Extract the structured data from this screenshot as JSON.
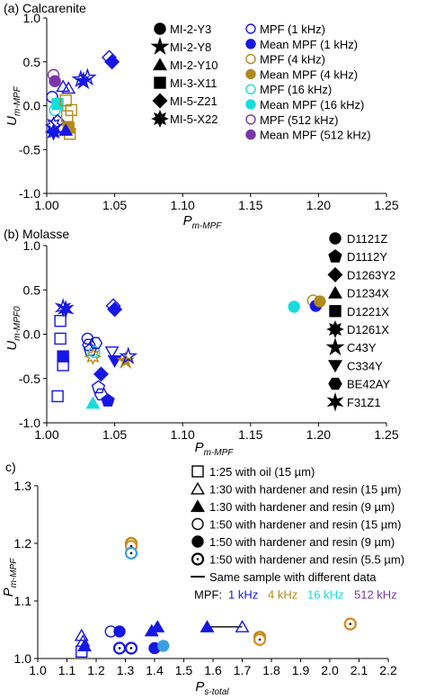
{
  "colors": {
    "blue": "#1616e6",
    "gold": "#b08a1a",
    "cyan": "#18dcdc",
    "purple": "#7b36a8",
    "orange": "#e08a1a",
    "ltblue": "#3a9fe0",
    "black": "#000000",
    "white": "#ffffff"
  },
  "chart_data": [
    {
      "type": "scatter",
      "title": "(a) Calcarenite",
      "xlabel": {
        "main": "P",
        "sub": "m-MPF"
      },
      "ylabel": {
        "main": "U",
        "sub": "m-MPF"
      },
      "xlim": [
        1.0,
        1.25
      ],
      "ylim": [
        -1.0,
        1.0
      ],
      "xticks": [
        "1.00",
        "1.05",
        "1.10",
        "1.15",
        "1.20",
        "1.25"
      ],
      "yticks": [
        "-1.0",
        "-0.5",
        "0.0",
        "0.5",
        "1.0"
      ],
      "legend_shapes": [
        {
          "shape": "circle",
          "label": "MI-2-Y3"
        },
        {
          "shape": "star5",
          "label": "MI-2-Y8"
        },
        {
          "shape": "triangle",
          "label": "MI-2-Y10"
        },
        {
          "shape": "square",
          "label": "MI-3-X11"
        },
        {
          "shape": "diamond",
          "label": "MI-5-Z21"
        },
        {
          "shape": "star8",
          "label": "MI-5-X22"
        }
      ],
      "legend_colors": [
        {
          "fill": "none",
          "color": "blue",
          "label": "MPF (1 kHz)"
        },
        {
          "fill": "blue",
          "color": "blue",
          "label": "Mean MPF (1 kHz)"
        },
        {
          "fill": "none",
          "color": "gold",
          "label": "MPF (4 kHz)"
        },
        {
          "fill": "gold",
          "color": "gold",
          "label": "Mean MPF (4 kHz)"
        },
        {
          "fill": "none",
          "color": "cyan",
          "label": "MPF (16 kHz)"
        },
        {
          "fill": "cyan",
          "color": "cyan",
          "label": "Mean MPF (16 kHz)"
        },
        {
          "fill": "none",
          "color": "purple",
          "label": "MPF (512 kHz)"
        },
        {
          "fill": "purple",
          "color": "purple",
          "label": "Mean MPF (512 kHz)"
        }
      ],
      "points": [
        {
          "x": 1.005,
          "y": 0.35,
          "shape": "circle",
          "color": "purple",
          "filled": false
        },
        {
          "x": 1.006,
          "y": 0.28,
          "shape": "circle",
          "color": "purple",
          "filled": true
        },
        {
          "x": 1.004,
          "y": 0.1,
          "shape": "circle",
          "color": "blue",
          "filled": false
        },
        {
          "x": 1.008,
          "y": 0.02,
          "shape": "square",
          "color": "cyan",
          "filled": true
        },
        {
          "x": 1.006,
          "y": -0.05,
          "shape": "circle",
          "color": "cyan",
          "filled": false
        },
        {
          "x": 1.005,
          "y": -0.22,
          "shape": "star8",
          "color": "blue",
          "filled": false
        },
        {
          "x": 1.005,
          "y": -0.3,
          "shape": "star8",
          "color": "blue",
          "filled": true
        },
        {
          "x": 1.008,
          "y": -0.18,
          "shape": "diamond",
          "color": "blue",
          "filled": false
        },
        {
          "x": 1.012,
          "y": 0.22,
          "shape": "triangle",
          "color": "blue",
          "filled": false
        },
        {
          "x": 1.016,
          "y": 0.2,
          "shape": "triangle",
          "color": "blue",
          "filled": false
        },
        {
          "x": 1.014,
          "y": 0.06,
          "shape": "square",
          "color": "gold",
          "filled": false
        },
        {
          "x": 1.015,
          "y": -0.12,
          "shape": "square",
          "color": "gold",
          "filled": false
        },
        {
          "x": 1.016,
          "y": -0.25,
          "shape": "square",
          "color": "gold",
          "filled": true
        },
        {
          "x": 1.017,
          "y": -0.32,
          "shape": "square",
          "color": "gold",
          "filled": false
        },
        {
          "x": 1.014,
          "y": -0.28,
          "shape": "triangle",
          "color": "blue",
          "filled": true
        },
        {
          "x": 1.018,
          "y": -0.05,
          "shape": "square",
          "color": "gold",
          "filled": false
        },
        {
          "x": 1.025,
          "y": 0.3,
          "shape": "star5",
          "color": "blue",
          "filled": false
        },
        {
          "x": 1.027,
          "y": 0.28,
          "shape": "star5",
          "color": "blue",
          "filled": true
        },
        {
          "x": 1.03,
          "y": 0.32,
          "shape": "star5",
          "color": "blue",
          "filled": false
        },
        {
          "x": 1.046,
          "y": 0.55,
          "shape": "diamond",
          "color": "blue",
          "filled": false
        },
        {
          "x": 1.048,
          "y": 0.5,
          "shape": "diamond",
          "color": "blue",
          "filled": true
        }
      ]
    },
    {
      "type": "scatter",
      "title": "(b) Molasse",
      "xlabel": {
        "main": "P",
        "sub": "m-MPF"
      },
      "ylabel": {
        "main": "U",
        "sub": "m-MPF0"
      },
      "xlim": [
        1.0,
        1.25
      ],
      "ylim": [
        -1.0,
        1.0
      ],
      "xticks": [
        "1.00",
        "1.05",
        "1.10",
        "1.15",
        "1.20",
        "1.25"
      ],
      "yticks": [
        "-1.0",
        "-0.5",
        "0.0",
        "0.5",
        "1.0"
      ],
      "legend_shapes": [
        {
          "shape": "circle",
          "label": "D1121Z"
        },
        {
          "shape": "pentagon",
          "label": "D1112Y"
        },
        {
          "shape": "diamond",
          "label": "D1263Y2"
        },
        {
          "shape": "triangle",
          "label": "D1234X"
        },
        {
          "shape": "square",
          "label": "D1221X"
        },
        {
          "shape": "star8",
          "label": "D1261X"
        },
        {
          "shape": "star5",
          "label": "C43Y"
        },
        {
          "shape": "triangle-down",
          "label": "C334Y"
        },
        {
          "shape": "hexagon",
          "label": "BE42AY"
        },
        {
          "shape": "star6",
          "label": "F31Z1"
        }
      ],
      "points": [
        {
          "x": 1.01,
          "y": 0.15,
          "shape": "square",
          "color": "blue",
          "filled": false
        },
        {
          "x": 1.01,
          "y": -0.05,
          "shape": "square",
          "color": "blue",
          "filled": false
        },
        {
          "x": 1.012,
          "y": -0.25,
          "shape": "square",
          "color": "blue",
          "filled": true
        },
        {
          "x": 1.012,
          "y": -0.35,
          "shape": "square",
          "color": "blue",
          "filled": false
        },
        {
          "x": 1.008,
          "y": -0.7,
          "shape": "square",
          "color": "blue",
          "filled": false
        },
        {
          "x": 1.012,
          "y": 0.3,
          "shape": "star6",
          "color": "blue",
          "filled": false
        },
        {
          "x": 1.014,
          "y": 0.28,
          "shape": "star6",
          "color": "blue",
          "filled": true
        },
        {
          "x": 1.03,
          "y": -0.05,
          "shape": "circle",
          "color": "blue",
          "filled": false
        },
        {
          "x": 1.031,
          "y": -0.12,
          "shape": "hexagon",
          "color": "blue",
          "filled": false
        },
        {
          "x": 1.032,
          "y": -0.18,
          "shape": "pentagon",
          "color": "blue",
          "filled": false
        },
        {
          "x": 1.034,
          "y": -0.25,
          "shape": "star8",
          "color": "gold",
          "filled": false
        },
        {
          "x": 1.035,
          "y": -0.2,
          "shape": "circle",
          "color": "cyan",
          "filled": false
        },
        {
          "x": 1.036,
          "y": -0.1,
          "shape": "hexagon",
          "color": "blue",
          "filled": false
        },
        {
          "x": 1.04,
          "y": -0.45,
          "shape": "diamond",
          "color": "blue",
          "filled": true
        },
        {
          "x": 1.038,
          "y": -0.6,
          "shape": "pentagon",
          "color": "blue",
          "filled": false
        },
        {
          "x": 1.04,
          "y": -0.68,
          "shape": "hexagon",
          "color": "blue",
          "filled": false
        },
        {
          "x": 1.034,
          "y": -0.78,
          "shape": "triangle",
          "color": "cyan",
          "filled": true
        },
        {
          "x": 1.045,
          "y": -0.75,
          "shape": "pentagon",
          "color": "blue",
          "filled": true
        },
        {
          "x": 1.048,
          "y": -0.2,
          "shape": "triangle-down",
          "color": "blue",
          "filled": false
        },
        {
          "x": 1.05,
          "y": -0.3,
          "shape": "triangle-down",
          "color": "blue",
          "filled": true
        },
        {
          "x": 1.049,
          "y": 0.32,
          "shape": "diamond",
          "color": "blue",
          "filled": false
        },
        {
          "x": 1.05,
          "y": 0.28,
          "shape": "diamond",
          "color": "blue",
          "filled": true
        },
        {
          "x": 1.058,
          "y": -0.3,
          "shape": "star5",
          "color": "gold",
          "filled": true
        },
        {
          "x": 1.06,
          "y": -0.25,
          "shape": "star5",
          "color": "blue",
          "filled": false
        },
        {
          "x": 1.182,
          "y": 0.31,
          "shape": "circle",
          "color": "cyan",
          "filled": true
        },
        {
          "x": 1.196,
          "y": 0.38,
          "shape": "circle",
          "color": "gold",
          "filled": false
        },
        {
          "x": 1.198,
          "y": 0.32,
          "shape": "circle",
          "color": "blue",
          "filled": true
        },
        {
          "x": 1.201,
          "y": 0.37,
          "shape": "circle",
          "color": "gold",
          "filled": true
        }
      ]
    },
    {
      "type": "scatter",
      "title": "c)",
      "xlabel": {
        "main": "P",
        "sub": "s-total"
      },
      "ylabel": {
        "main": "P",
        "sub": "m-MPF"
      },
      "xlim": [
        1.0,
        2.2
      ],
      "ylim": [
        1.0,
        1.3
      ],
      "xticks": [
        "1.0",
        "1.1",
        "1.2",
        "1.3",
        "1.4",
        "1.5",
        "1.6",
        "1.7",
        "1.8",
        "1.9",
        "2.0",
        "2.1",
        "2.2"
      ],
      "yticks": [
        "1.0",
        "1.1",
        "1.2",
        "1.3"
      ],
      "legend": [
        {
          "shape": "square",
          "filled": false,
          "label": "1:25 with oil (15 µm)"
        },
        {
          "shape": "triangle",
          "filled": false,
          "label": "1:30 with hardener and resin (15 µm)"
        },
        {
          "shape": "triangle",
          "filled": true,
          "label": "1:30 with hardener and resin (9 µm)"
        },
        {
          "shape": "circle",
          "filled": false,
          "label": "1:50 with hardener and resin (15 µm)"
        },
        {
          "shape": "circle",
          "filled": true,
          "label": "1:50 with hardener and resin (9 µm)"
        },
        {
          "shape": "circle-dot",
          "filled": false,
          "label": "1:50 with hardener and resin (5.5 µm)"
        },
        {
          "shape": "line",
          "filled": false,
          "label": "Same sample with different data"
        }
      ],
      "mpf_caption": "MPF:",
      "mpf_freqs": [
        {
          "label": "1 kHz",
          "color": "blue"
        },
        {
          "label": "4 kHz",
          "color": "gold"
        },
        {
          "label": "16 kHz",
          "color": "cyan"
        },
        {
          "label": "512 kHz",
          "color": "purple"
        }
      ],
      "segments": [
        {
          "x1": 1.58,
          "y1": 1.055,
          "x2": 1.7,
          "y2": 1.055
        }
      ],
      "points": [
        {
          "x": 1.15,
          "y": 1.012,
          "shape": "square",
          "color": "blue",
          "filled": false
        },
        {
          "x": 1.15,
          "y": 1.04,
          "shape": "triangle",
          "color": "blue",
          "filled": false
        },
        {
          "x": 1.155,
          "y": 1.03,
          "shape": "triangle",
          "color": "blue",
          "filled": false
        },
        {
          "x": 1.16,
          "y": 1.022,
          "shape": "triangle",
          "color": "blue",
          "filled": true
        },
        {
          "x": 1.25,
          "y": 1.047,
          "shape": "circle",
          "color": "blue",
          "filled": false
        },
        {
          "x": 1.28,
          "y": 1.047,
          "shape": "circle",
          "color": "blue",
          "filled": true
        },
        {
          "x": 1.28,
          "y": 1.018,
          "shape": "circle-dot",
          "color": "blue",
          "filled": false
        },
        {
          "x": 1.32,
          "y": 1.2,
          "shape": "circle-dot",
          "color": "gold",
          "filled": false
        },
        {
          "x": 1.32,
          "y": 1.195,
          "shape": "circle-dot",
          "color": "orange",
          "filled": false
        },
        {
          "x": 1.32,
          "y": 1.183,
          "shape": "circle-dot",
          "color": "ltblue",
          "filled": false
        },
        {
          "x": 1.32,
          "y": 1.018,
          "shape": "circle-dot",
          "color": "blue",
          "filled": false
        },
        {
          "x": 1.39,
          "y": 1.048,
          "shape": "triangle",
          "color": "blue",
          "filled": true
        },
        {
          "x": 1.41,
          "y": 1.055,
          "shape": "triangle",
          "color": "blue",
          "filled": true
        },
        {
          "x": 1.4,
          "y": 1.018,
          "shape": "circle",
          "color": "blue",
          "filled": true
        },
        {
          "x": 1.43,
          "y": 1.022,
          "shape": "circle",
          "color": "ltblue",
          "filled": true
        },
        {
          "x": 1.58,
          "y": 1.055,
          "shape": "triangle",
          "color": "blue",
          "filled": true
        },
        {
          "x": 1.7,
          "y": 1.055,
          "shape": "triangle",
          "color": "blue",
          "filled": false
        },
        {
          "x": 1.76,
          "y": 1.037,
          "shape": "circle-dot",
          "color": "gold",
          "filled": false
        },
        {
          "x": 1.76,
          "y": 1.033,
          "shape": "circle-dot",
          "color": "orange",
          "filled": false
        },
        {
          "x": 2.07,
          "y": 1.06,
          "shape": "circle-dot",
          "color": "ltblue",
          "filled": false
        },
        {
          "x": 2.07,
          "y": 1.06,
          "shape": "circle-dot",
          "color": "orange",
          "filled": false
        }
      ]
    }
  ]
}
